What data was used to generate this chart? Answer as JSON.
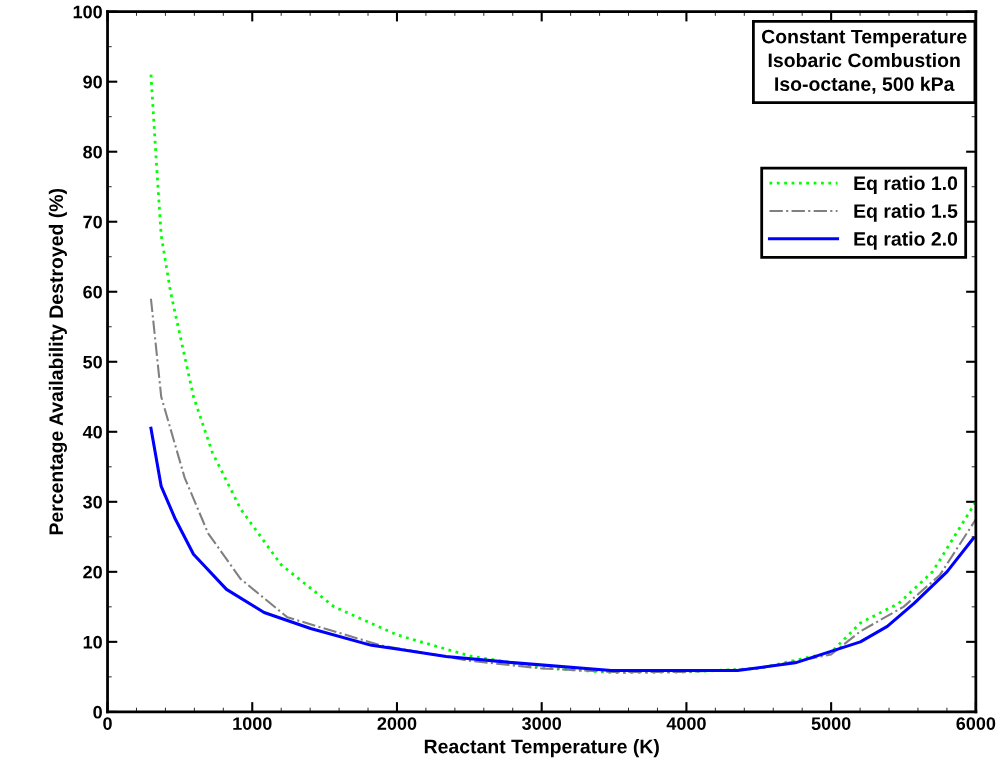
{
  "chart_data": {
    "type": "line",
    "xlabel": "Reactant Temperature (K)",
    "ylabel": "Percentage Availability Destroyed (%)",
    "xlim": [
      0,
      6000
    ],
    "ylim": [
      0,
      100
    ],
    "xticks": [
      0,
      1000,
      2000,
      3000,
      4000,
      5000,
      6000
    ],
    "yticks": [
      0,
      10,
      20,
      30,
      40,
      50,
      60,
      70,
      80,
      90,
      100
    ],
    "annotations": [
      "Constant Temperature\nIsobaric Combustion\nIso-octane, 500 kPa"
    ],
    "legend": "top right",
    "grid": false,
    "series": [
      {
        "name": "Eq ratio 1.0",
        "color": "#00ff00",
        "line_style": "dotted",
        "x": [
          300,
          339,
          371,
          435,
          594,
          725,
          919,
          1200,
          1566,
          2000,
          2500,
          3000,
          3500,
          4000,
          4500,
          5000,
          5202,
          5467,
          5700,
          6000
        ],
        "values": [
          91,
          78,
          68,
          60,
          45,
          37,
          29,
          21,
          15,
          11,
          8,
          6.3,
          5.6,
          5.7,
          6.2,
          8.5,
          12.7,
          15.5,
          20,
          30
        ]
      },
      {
        "name": "Eq ratio 1.5",
        "color": "#808080",
        "line_style": "dashdot",
        "x": [
          300,
          371,
          532,
          695,
          919,
          1243,
          1887,
          2500,
          3000,
          3500,
          4000,
          4500,
          5000,
          5202,
          5500,
          5750,
          6000
        ],
        "values": [
          59,
          45,
          33.5,
          25.5,
          19,
          13.5,
          9.5,
          7.3,
          6.2,
          5.7,
          5.7,
          6.2,
          8.2,
          11.5,
          15,
          19.5,
          27.5
        ]
      },
      {
        "name": "Eq ratio 2.0",
        "color": "#0000ff",
        "line_style": "solid",
        "x": [
          300,
          371,
          469,
          594,
          822,
          1082,
          1403,
          1824,
          2025,
          2340,
          2820,
          3481,
          4354,
          4752,
          5202,
          5388,
          5573,
          5800,
          5983
        ],
        "values": [
          40.5,
          32.2,
          27.5,
          22.5,
          17.5,
          14.2,
          11.9,
          9.5,
          8.9,
          7.9,
          7.0,
          5.9,
          5.9,
          7.0,
          10,
          12.2,
          15.5,
          20,
          24.8
        ]
      }
    ]
  }
}
